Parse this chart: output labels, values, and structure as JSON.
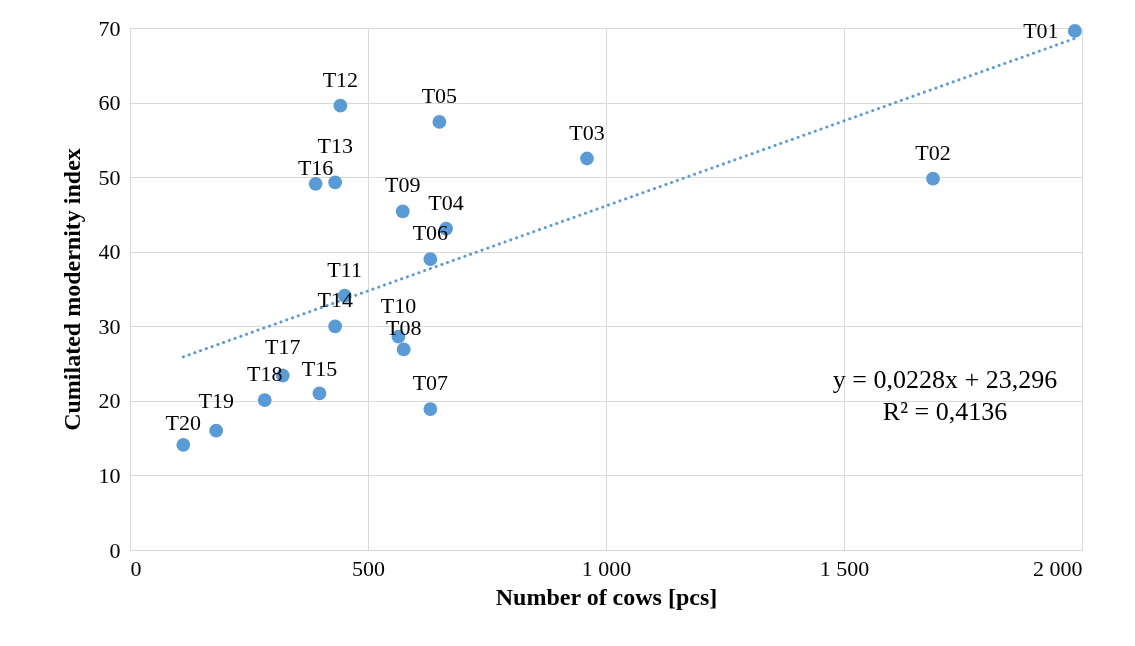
{
  "chart_data": {
    "type": "scatter",
    "xlabel": "Number of cows [pcs]",
    "ylabel": "Cumilated modernity index",
    "xlim": [
      0,
      2000
    ],
    "xticks": [
      0,
      500,
      {
        "value": 1000,
        "label": "1 000"
      },
      {
        "value": 1500,
        "label": "1 500"
      },
      {
        "value": 2000,
        "label": "2 000"
      }
    ],
    "ylim": [
      0,
      70
    ],
    "yticks": [
      0,
      10,
      20,
      30,
      40,
      50,
      60,
      70
    ],
    "grid": true,
    "series": [
      {
        "type": "scatter",
        "marker": "circle",
        "color": "#5b9bd5",
        "x": [
          1985,
          1687,
          960,
          664,
          650,
          631,
          631,
          575,
          573,
          564,
          451,
          442,
          431,
          431,
          398,
          390,
          321,
          283,
          181,
          112
        ],
        "values": [
          69.6,
          49.8,
          52.5,
          43.1,
          57.4,
          39.0,
          18.9,
          26.9,
          45.4,
          28.6,
          34.1,
          59.6,
          49.3,
          30.0,
          21.0,
          49.1,
          23.4,
          20.1,
          16.0,
          14.1
        ]
      },
      {
        "type": "line",
        "color": "#5b9bd5",
        "line_style": "dotted",
        "x": [
          112,
          1985
        ],
        "values": [
          25.9,
          68.6
        ]
      }
    ],
    "annotations": [
      {
        "text": "T01",
        "x": 1985,
        "y": 69.6
      },
      {
        "text": "T02",
        "x": 1687,
        "y": 49.8
      },
      {
        "text": "T03",
        "x": 960,
        "y": 52.5
      },
      {
        "text": "T04",
        "x": 664,
        "y": 43.1
      },
      {
        "text": "T05",
        "x": 650,
        "y": 57.4
      },
      {
        "text": "T06",
        "x": 631,
        "y": 39.0
      },
      {
        "text": "T07",
        "x": 631,
        "y": 18.9
      },
      {
        "text": "T08",
        "x": 575,
        "y": 26.9
      },
      {
        "text": "T09",
        "x": 573,
        "y": 45.4
      },
      {
        "text": "T10",
        "x": 564,
        "y": 28.6
      },
      {
        "text": "T11",
        "x": 451,
        "y": 34.1
      },
      {
        "text": "T12",
        "x": 442,
        "y": 59.6
      },
      {
        "text": "T13",
        "x": 431,
        "y": 49.3
      },
      {
        "text": "T14",
        "x": 431,
        "y": 30.0
      },
      {
        "text": "T15",
        "x": 398,
        "y": 21.0
      },
      {
        "text": "T16",
        "x": 390,
        "y": 49.1
      },
      {
        "text": "T17",
        "x": 321,
        "y": 23.4
      },
      {
        "text": "T18",
        "x": 283,
        "y": 20.1
      },
      {
        "text": "T19",
        "x": 181,
        "y": 16.0
      },
      {
        "text": "T20",
        "x": 112,
        "y": 14.1
      },
      "y = 0,0228x + 23,296",
      "R² = 0,4136"
    ]
  }
}
